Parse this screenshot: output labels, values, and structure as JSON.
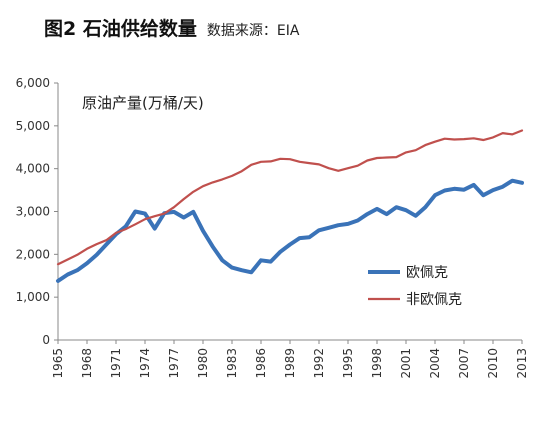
{
  "header": {
    "title": "图2 石油供给数量",
    "source": "数据来源：EIA"
  },
  "chart_data": {
    "type": "line",
    "ylabel": "原油产量(万桶/天)",
    "ylim": [
      0,
      6000
    ],
    "yticks": [
      0,
      1000,
      2000,
      3000,
      4000,
      5000,
      6000
    ],
    "ytick_labels": [
      "0",
      "1,000",
      "2,000",
      "3,000",
      "4,000",
      "5,000",
      "6,000"
    ],
    "xlim": [
      1965,
      2013
    ],
    "xticks": [
      1965,
      1968,
      1971,
      1974,
      1977,
      1980,
      1983,
      1986,
      1989,
      1992,
      1995,
      1998,
      2001,
      2004,
      2007,
      2010,
      2013
    ],
    "xtick_labels": [
      "1965",
      "1968",
      "1971",
      "1974",
      "1977",
      "1980",
      "1983",
      "1986",
      "1989",
      "1992",
      "1995",
      "1998",
      "2001",
      "2004",
      "2007",
      "2010",
      "2013"
    ],
    "x": [
      1965,
      1966,
      1967,
      1968,
      1969,
      1970,
      1971,
      1972,
      1973,
      1974,
      1975,
      1976,
      1977,
      1978,
      1979,
      1980,
      1981,
      1982,
      1983,
      1984,
      1985,
      1986,
      1987,
      1988,
      1989,
      1990,
      1991,
      1992,
      1993,
      1994,
      1995,
      1996,
      1997,
      1998,
      1999,
      2000,
      2001,
      2002,
      2003,
      2004,
      2005,
      2006,
      2007,
      2008,
      2009,
      2010,
      2011,
      2012,
      2013
    ],
    "legend_position": "center-right",
    "series": [
      {
        "name": "欧佩克",
        "color": "#3a73b8",
        "values": [
          1380,
          1530,
          1630,
          1790,
          1990,
          2230,
          2470,
          2650,
          3000,
          2950,
          2600,
          2960,
          2990,
          2860,
          2990,
          2550,
          2180,
          1860,
          1690,
          1630,
          1580,
          1860,
          1830,
          2060,
          2230,
          2380,
          2400,
          2560,
          2620,
          2680,
          2710,
          2790,
          2940,
          3060,
          2940,
          3100,
          3030,
          2900,
          3100,
          3380,
          3490,
          3530,
          3510,
          3620,
          3380,
          3500,
          3580,
          3720,
          3670
        ]
      },
      {
        "name": "非欧佩克",
        "color": "#c0504d",
        "values": [
          1770,
          1880,
          1990,
          2130,
          2240,
          2330,
          2500,
          2590,
          2700,
          2820,
          2890,
          2950,
          3100,
          3290,
          3460,
          3590,
          3680,
          3750,
          3830,
          3940,
          4090,
          4160,
          4170,
          4230,
          4220,
          4160,
          4130,
          4100,
          4010,
          3950,
          4010,
          4070,
          4190,
          4250,
          4260,
          4270,
          4380,
          4430,
          4550,
          4630,
          4700,
          4680,
          4690,
          4710,
          4670,
          4730,
          4830,
          4800,
          4890
        ]
      }
    ]
  }
}
